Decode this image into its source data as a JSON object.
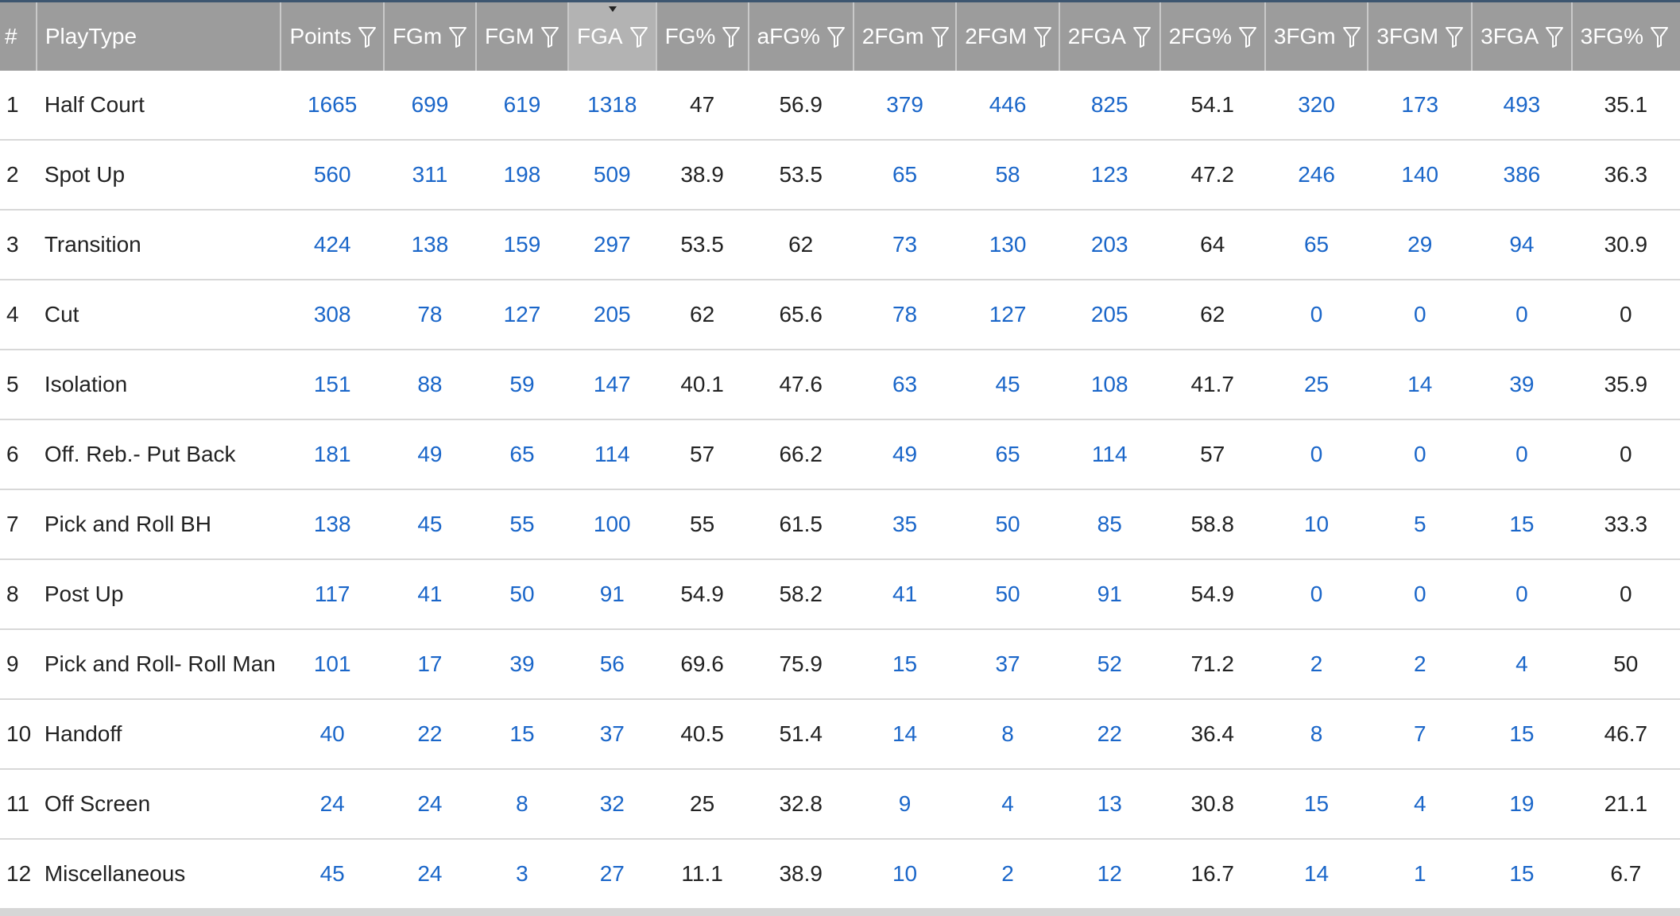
{
  "table": {
    "sorted_column": "FGA",
    "columns": [
      {
        "label": "#",
        "filter": false,
        "name": "rank"
      },
      {
        "label": "PlayType",
        "filter": false,
        "name": "playtype"
      },
      {
        "label": "Points",
        "filter": true,
        "name": "points"
      },
      {
        "label": "FGm",
        "filter": true,
        "name": "fg-missed"
      },
      {
        "label": "FGM",
        "filter": true,
        "name": "fg-made"
      },
      {
        "label": "FGA",
        "filter": true,
        "name": "fga"
      },
      {
        "label": "FG%",
        "filter": true,
        "name": "fg-pct"
      },
      {
        "label": "aFG%",
        "filter": true,
        "name": "afg-pct"
      },
      {
        "label": "2FGm",
        "filter": true,
        "name": "2fg-missed"
      },
      {
        "label": "2FGM",
        "filter": true,
        "name": "2fg-made"
      },
      {
        "label": "2FGA",
        "filter": true,
        "name": "2fga"
      },
      {
        "label": "2FG%",
        "filter": true,
        "name": "2fg-pct"
      },
      {
        "label": "3FGm",
        "filter": true,
        "name": "3fg-missed"
      },
      {
        "label": "3FGM",
        "filter": true,
        "name": "3fg-made"
      },
      {
        "label": "3FGA",
        "filter": true,
        "name": "3fga"
      },
      {
        "label": "3FG%",
        "filter": true,
        "name": "3fg-pct"
      }
    ],
    "link_columns": [
      2,
      3,
      4,
      5,
      8,
      9,
      10,
      12,
      13,
      14
    ],
    "rows": [
      [
        "1",
        "Half Court",
        "1665",
        "699",
        "619",
        "1318",
        "47",
        "56.9",
        "379",
        "446",
        "825",
        "54.1",
        "320",
        "173",
        "493",
        "35.1"
      ],
      [
        "2",
        "Spot Up",
        "560",
        "311",
        "198",
        "509",
        "38.9",
        "53.5",
        "65",
        "58",
        "123",
        "47.2",
        "246",
        "140",
        "386",
        "36.3"
      ],
      [
        "3",
        "Transition",
        "424",
        "138",
        "159",
        "297",
        "53.5",
        "62",
        "73",
        "130",
        "203",
        "64",
        "65",
        "29",
        "94",
        "30.9"
      ],
      [
        "4",
        "Cut",
        "308",
        "78",
        "127",
        "205",
        "62",
        "65.6",
        "78",
        "127",
        "205",
        "62",
        "0",
        "0",
        "0",
        "0"
      ],
      [
        "5",
        "Isolation",
        "151",
        "88",
        "59",
        "147",
        "40.1",
        "47.6",
        "63",
        "45",
        "108",
        "41.7",
        "25",
        "14",
        "39",
        "35.9"
      ],
      [
        "6",
        "Off. Reb.- Put Back",
        "181",
        "49",
        "65",
        "114",
        "57",
        "66.2",
        "49",
        "65",
        "114",
        "57",
        "0",
        "0",
        "0",
        "0"
      ],
      [
        "7",
        "Pick and Roll BH",
        "138",
        "45",
        "55",
        "100",
        "55",
        "61.5",
        "35",
        "50",
        "85",
        "58.8",
        "10",
        "5",
        "15",
        "33.3"
      ],
      [
        "8",
        "Post Up",
        "117",
        "41",
        "50",
        "91",
        "54.9",
        "58.2",
        "41",
        "50",
        "91",
        "54.9",
        "0",
        "0",
        "0",
        "0"
      ],
      [
        "9",
        "Pick and Roll- Roll Man",
        "101",
        "17",
        "39",
        "56",
        "69.6",
        "75.9",
        "15",
        "37",
        "52",
        "71.2",
        "2",
        "2",
        "4",
        "50"
      ],
      [
        "10",
        "Handoff",
        "40",
        "22",
        "15",
        "37",
        "40.5",
        "51.4",
        "14",
        "8",
        "22",
        "36.4",
        "8",
        "7",
        "15",
        "46.7"
      ],
      [
        "11",
        "Off Screen",
        "24",
        "24",
        "8",
        "32",
        "25",
        "32.8",
        "9",
        "4",
        "13",
        "30.8",
        "15",
        "4",
        "19",
        "21.1"
      ],
      [
        "12",
        "Miscellaneous",
        "45",
        "24",
        "3",
        "27",
        "11.1",
        "38.9",
        "10",
        "2",
        "12",
        "16.7",
        "14",
        "1",
        "15",
        "6.7"
      ]
    ]
  },
  "colors": {
    "header_bg": "#9c9c9c",
    "header_sorted_bg": "#b3b3b3",
    "header_text": "#ffffff",
    "link_text": "#1a66c9",
    "plain_text": "#222222",
    "row_divider": "#d8d8d8"
  },
  "icons": {
    "filter": "filter-funnel-icon",
    "sort": "sort-descending-icon"
  }
}
